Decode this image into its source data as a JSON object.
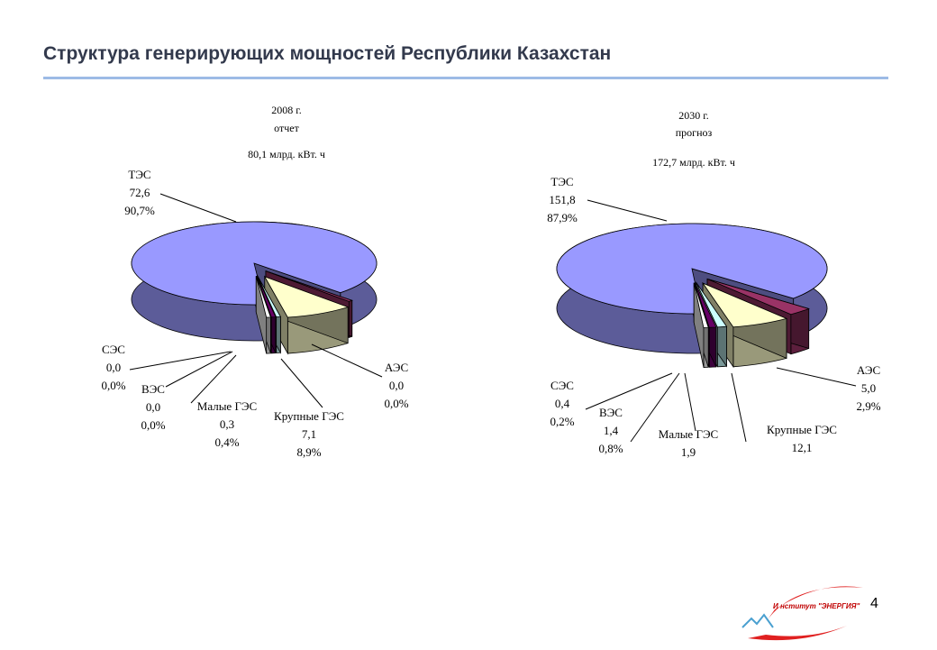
{
  "title": "Структура генерирующих мощностей Республики Казахстан",
  "page_number": "4",
  "logo_text": "И нститут \"ЭНЕРГИЯ\"",
  "colors": {
    "tes": "#9999ff",
    "large_hydro": "#ffffcc",
    "small_hydro": "#ccffff",
    "wind": "#660066",
    "solar": "#ffffff",
    "nuclear": "#993366",
    "title": "#333a4d",
    "rule": "#9dbbe6"
  },
  "chart_data": [
    {
      "type": "pie",
      "header": [
        "2008 г.",
        "отчет",
        "80,1 млрд. кВт. ч"
      ],
      "slices": [
        {
          "key": "tes",
          "lines": [
            "ТЭС",
            "72,6",
            "90,7%"
          ],
          "value": 72.6,
          "percent": 90.7
        },
        {
          "key": "nuclear",
          "lines": [
            "АЭС",
            "0,0",
            "0,0%"
          ],
          "value": 0.0,
          "percent": 0.0
        },
        {
          "key": "large_hydro",
          "lines": [
            "Крупные ГЭС",
            "7,1",
            "8,9%"
          ],
          "value": 7.1,
          "percent": 8.9
        },
        {
          "key": "small_hydro",
          "lines": [
            "Малые ГЭС",
            "0,3",
            "0,4%"
          ],
          "value": 0.3,
          "percent": 0.4
        },
        {
          "key": "wind",
          "lines": [
            "ВЭС",
            "0,0",
            "0,0%"
          ],
          "value": 0.0,
          "percent": 0.0
        },
        {
          "key": "solar",
          "lines": [
            "СЭС",
            "0,0",
            "0,0%"
          ],
          "value": 0.0,
          "percent": 0.0
        }
      ]
    },
    {
      "type": "pie",
      "header": [
        "2030 г.",
        "прогноз",
        "172,7 млрд. кВт. ч"
      ],
      "slices": [
        {
          "key": "tes",
          "lines": [
            "ТЭС",
            "151,8",
            "87,9%"
          ],
          "value": 151.8,
          "percent": 87.9
        },
        {
          "key": "nuclear",
          "lines": [
            "АЭС",
            "5,0",
            "2,9%"
          ],
          "value": 5.0,
          "percent": 2.9
        },
        {
          "key": "large_hydro",
          "lines": [
            "Крупные ГЭС",
            "12,1"
          ],
          "value": 12.1
        },
        {
          "key": "small_hydro",
          "lines": [
            "Малые ГЭС",
            "1,9"
          ],
          "value": 1.9
        },
        {
          "key": "wind",
          "lines": [
            "ВЭС",
            "1,4",
            "0,8%"
          ],
          "value": 1.4,
          "percent": 0.8
        },
        {
          "key": "solar",
          "lines": [
            "СЭС",
            "0,4",
            "0,2%"
          ],
          "value": 0.4,
          "percent": 0.2
        }
      ]
    }
  ]
}
